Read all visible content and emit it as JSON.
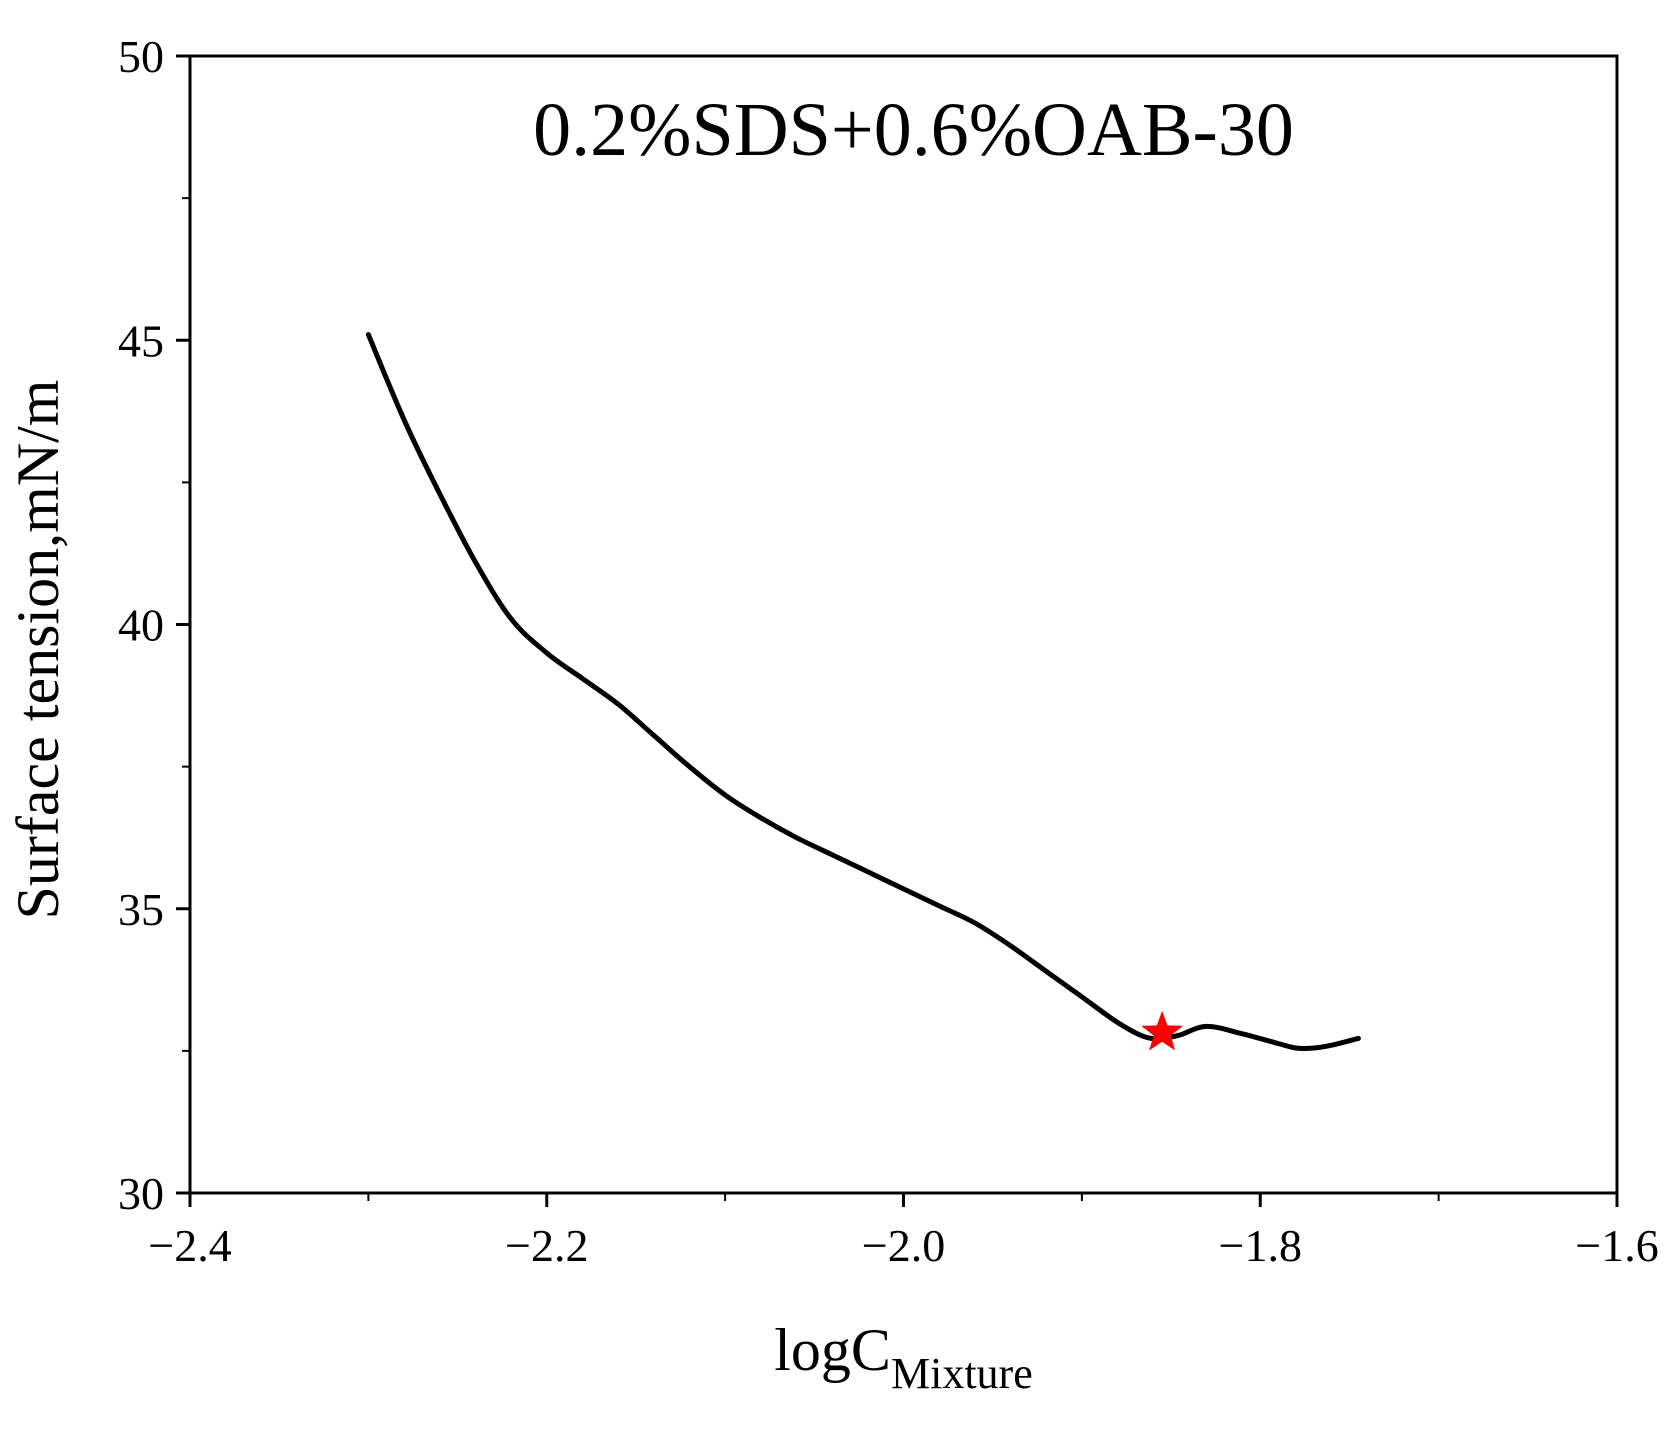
{
  "chart_data": {
    "type": "line",
    "title": "0.2%SDS+0.6%OAB-30",
    "xlabel": {
      "main": "logC",
      "subscript": "Mixture"
    },
    "ylabel": "Surface tension,mN/m",
    "xlim": [
      -2.4,
      -1.6
    ],
    "ylim": [
      30,
      50
    ],
    "x_ticks": [
      -2.4,
      -2.2,
      -2.0,
      -1.8,
      -1.6
    ],
    "x_tick_labels": [
      "−2.4",
      "−2.2",
      "−2.0",
      "−1.8",
      "−1.6"
    ],
    "y_ticks": [
      30,
      35,
      40,
      45,
      50
    ],
    "y_tick_labels": [
      "30",
      "35",
      "40",
      "45",
      "50"
    ],
    "y_minor_ticks": [
      32.5,
      37.5,
      42.5,
      47.5
    ],
    "x_minor_ticks": [
      -2.3,
      -2.1,
      -1.9,
      -1.7
    ],
    "grid": false,
    "legend": "none",
    "series": [
      {
        "color": "#000000",
        "x": [
          -2.3,
          -2.28,
          -2.26,
          -2.24,
          -2.22,
          -2.2,
          -2.18,
          -2.16,
          -2.14,
          -2.12,
          -2.1,
          -2.08,
          -2.06,
          -2.04,
          -2.02,
          -2.0,
          -1.98,
          -1.96,
          -1.94,
          -1.92,
          -1.9,
          -1.88,
          -1.865,
          -1.855,
          -1.845,
          -1.83,
          -1.81,
          -1.79,
          -1.78,
          -1.77,
          -1.76,
          -1.745
        ],
        "values": [
          45.1,
          43.6,
          42.3,
          41.1,
          40.1,
          39.5,
          39.05,
          38.6,
          38.05,
          37.5,
          37.0,
          36.6,
          36.25,
          35.95,
          35.65,
          35.35,
          35.05,
          34.75,
          34.35,
          33.9,
          33.45,
          33.0,
          32.75,
          32.72,
          32.78,
          32.93,
          32.8,
          32.63,
          32.55,
          32.55,
          32.6,
          32.72
        ]
      }
    ],
    "markers": [
      {
        "shape": "star",
        "color": "#ff0000",
        "x": -1.855,
        "y": 32.82
      }
    ]
  }
}
